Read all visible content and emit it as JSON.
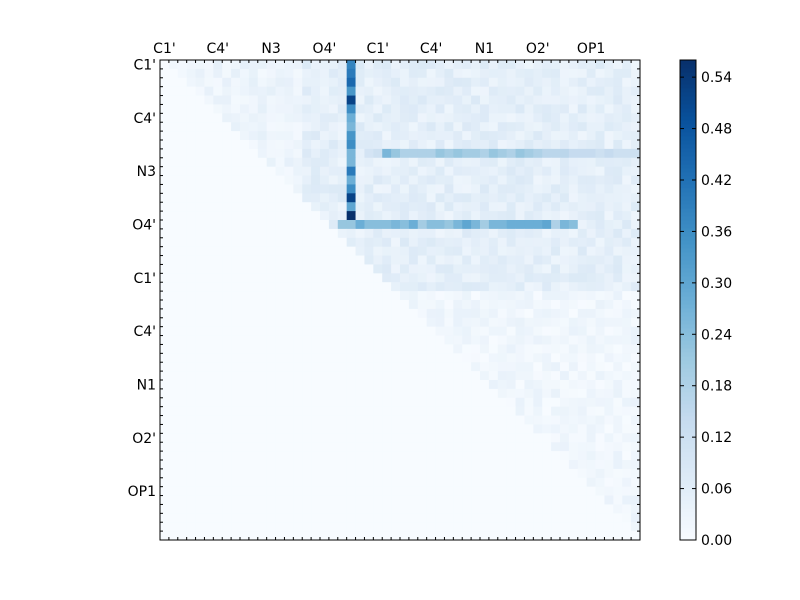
{
  "chart_data": {
    "type": "heatmap",
    "title": "",
    "xlabel": "",
    "ylabel": "",
    "grid": false,
    "colormap": "Blues",
    "color_range": [
      0.0,
      0.56
    ],
    "size": 54,
    "x_tick_labels": [
      {
        "label": "C1'",
        "index": 0
      },
      {
        "label": "C4'",
        "index": 6
      },
      {
        "label": "N3",
        "index": 12
      },
      {
        "label": "O4'",
        "index": 18
      },
      {
        "label": "C1'",
        "index": 24
      },
      {
        "label": "C4'",
        "index": 30
      },
      {
        "label": "N1",
        "index": 36
      },
      {
        "label": "O2'",
        "index": 42
      },
      {
        "label": "OP1",
        "index": 48
      }
    ],
    "y_tick_labels": [
      {
        "label": "C1'",
        "index": 0
      },
      {
        "label": "C4'",
        "index": 6
      },
      {
        "label": "N3",
        "index": 12
      },
      {
        "label": "O4'",
        "index": 18
      },
      {
        "label": "C1'",
        "index": 24
      },
      {
        "label": "C4'",
        "index": 30
      },
      {
        "label": "N1",
        "index": 36
      },
      {
        "label": "O2'",
        "index": 42
      },
      {
        "label": "OP1",
        "index": 48
      }
    ],
    "colorbar": {
      "ticks": [
        "0.00",
        "0.06",
        "0.12",
        "0.18",
        "0.24",
        "0.30",
        "0.36",
        "0.42",
        "0.48",
        "0.54"
      ],
      "tick_values": [
        0.0,
        0.06,
        0.12,
        0.18,
        0.24,
        0.3,
        0.36,
        0.42,
        0.48,
        0.54
      ]
    },
    "column_21_values": [
      0.38,
      0.4,
      0.44,
      0.34,
      0.52,
      0.36,
      0.28,
      0.26,
      0.34,
      0.36,
      0.26,
      0.26,
      0.4,
      0.28,
      0.36,
      0.52,
      0.3,
      0.56,
      0.38
    ],
    "row_22_values": [
      0.1,
      0.12,
      0.26,
      0.22,
      0.18,
      0.18,
      0.18,
      0.18,
      0.22,
      0.2,
      0.22,
      0.2,
      0.2,
      0.18,
      0.22,
      0.2,
      0.18,
      0.22,
      0.2,
      0.18,
      0.16,
      0.16,
      0.16,
      0.14,
      0.14,
      0.14,
      0.12,
      0.14,
      0.12,
      0.12,
      0.12
    ],
    "row_26_values": [
      0.22,
      0.22,
      0.28,
      0.24,
      0.24,
      0.24,
      0.26,
      0.24,
      0.28,
      0.2,
      0.24,
      0.24,
      0.22,
      0.26,
      0.3,
      0.26,
      0.2,
      0.26,
      0.26,
      0.28,
      0.28,
      0.28,
      0.28,
      0.3,
      0.18,
      0.26,
      0.24
    ],
    "band_region": {
      "rows": [
        0,
        25
      ],
      "cols": [
        16,
        53
      ],
      "typical_value": 0.06
    },
    "lower_triangle_value": 0.0,
    "diagonal_value": 0.0
  }
}
